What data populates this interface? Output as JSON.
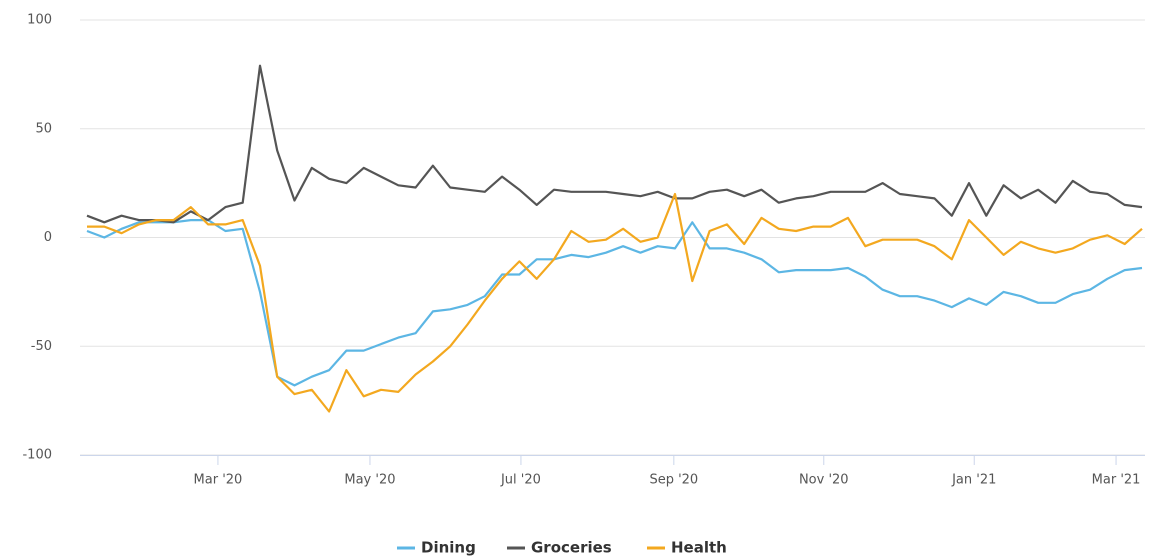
{
  "chart_data": {
    "type": "line",
    "categories": [
      null,
      null,
      null,
      null,
      null,
      null,
      null,
      null,
      null,
      null,
      null,
      null,
      null,
      null,
      null,
      null,
      null,
      null,
      null,
      null,
      null,
      null,
      null,
      null,
      null,
      null,
      null,
      null,
      null,
      null,
      null,
      null,
      null,
      null,
      null,
      null,
      null,
      null,
      null,
      null,
      null,
      null,
      null,
      null,
      null,
      null,
      null,
      null,
      null,
      null,
      null,
      null,
      null,
      null,
      null,
      null,
      null,
      null,
      null,
      null,
      null,
      null
    ],
    "series": [
      {
        "name": "Dining",
        "color": "#5cb6e4",
        "values": [
          3,
          0,
          4,
          7,
          7,
          7,
          8,
          8,
          3,
          4,
          -25,
          -64,
          -68,
          -64,
          -61,
          -52,
          -52,
          -49,
          -46,
          -44,
          -34,
          -33,
          -31,
          -27,
          -17,
          -17,
          -10,
          -10,
          -8,
          -9,
          -7,
          -4,
          -7,
          -4,
          -5,
          7,
          -5,
          -5,
          -7,
          -10,
          -16,
          -15,
          -15,
          -15,
          -14,
          -18,
          -24,
          -27,
          -27,
          -29,
          -32,
          -28,
          -31,
          -25,
          -27,
          -30,
          -30,
          -26,
          -24,
          -19,
          -15,
          -14
        ]
      },
      {
        "name": "Groceries",
        "color": "#555555",
        "values": [
          10,
          7,
          10,
          8,
          8,
          7,
          12,
          8,
          14,
          16,
          79,
          40,
          17,
          32,
          27,
          25,
          32,
          28,
          24,
          23,
          33,
          23,
          22,
          21,
          28,
          22,
          15,
          22,
          21,
          21,
          21,
          20,
          19,
          21,
          18,
          18,
          21,
          22,
          19,
          22,
          16,
          18,
          19,
          21,
          21,
          21,
          25,
          20,
          19,
          18,
          10,
          25,
          10,
          24,
          18,
          22,
          16,
          26,
          21,
          20,
          15,
          14
        ]
      },
      {
        "name": "Health",
        "color": "#f3a81f",
        "values": [
          5,
          5,
          2,
          6,
          8,
          8,
          14,
          6,
          6,
          8,
          -13,
          -64,
          -72,
          -70,
          -80,
          -61,
          -73,
          -70,
          -71,
          -63,
          -57,
          -50,
          -40,
          -29,
          -19,
          -11,
          -19,
          -10,
          3,
          -2,
          -1,
          4,
          -2,
          0,
          20,
          -20,
          3,
          6,
          -3,
          9,
          4,
          3,
          5,
          5,
          9,
          -4,
          -1,
          -1,
          -1,
          -4,
          -10,
          8,
          0,
          -8,
          -2,
          -5,
          -7,
          -5,
          -1,
          1,
          -3,
          4
        ]
      }
    ],
    "ylim": [
      -100,
      100
    ],
    "yticks": [
      -100,
      -50,
      0,
      50,
      100
    ],
    "xticks": [
      {
        "value": 7.57,
        "label": "Mar '20"
      },
      {
        "value": 16.36,
        "label": "May '20"
      },
      {
        "value": 25.09,
        "label": "Jul '20"
      },
      {
        "value": 33.93,
        "label": "Sep '20"
      },
      {
        "value": 42.6,
        "label": "Nov '20"
      },
      {
        "value": 51.3,
        "label": "Jan '21"
      },
      {
        "value": 59.5,
        "label": "Mar '21"
      }
    ],
    "grid": true,
    "legend": "bottom"
  }
}
